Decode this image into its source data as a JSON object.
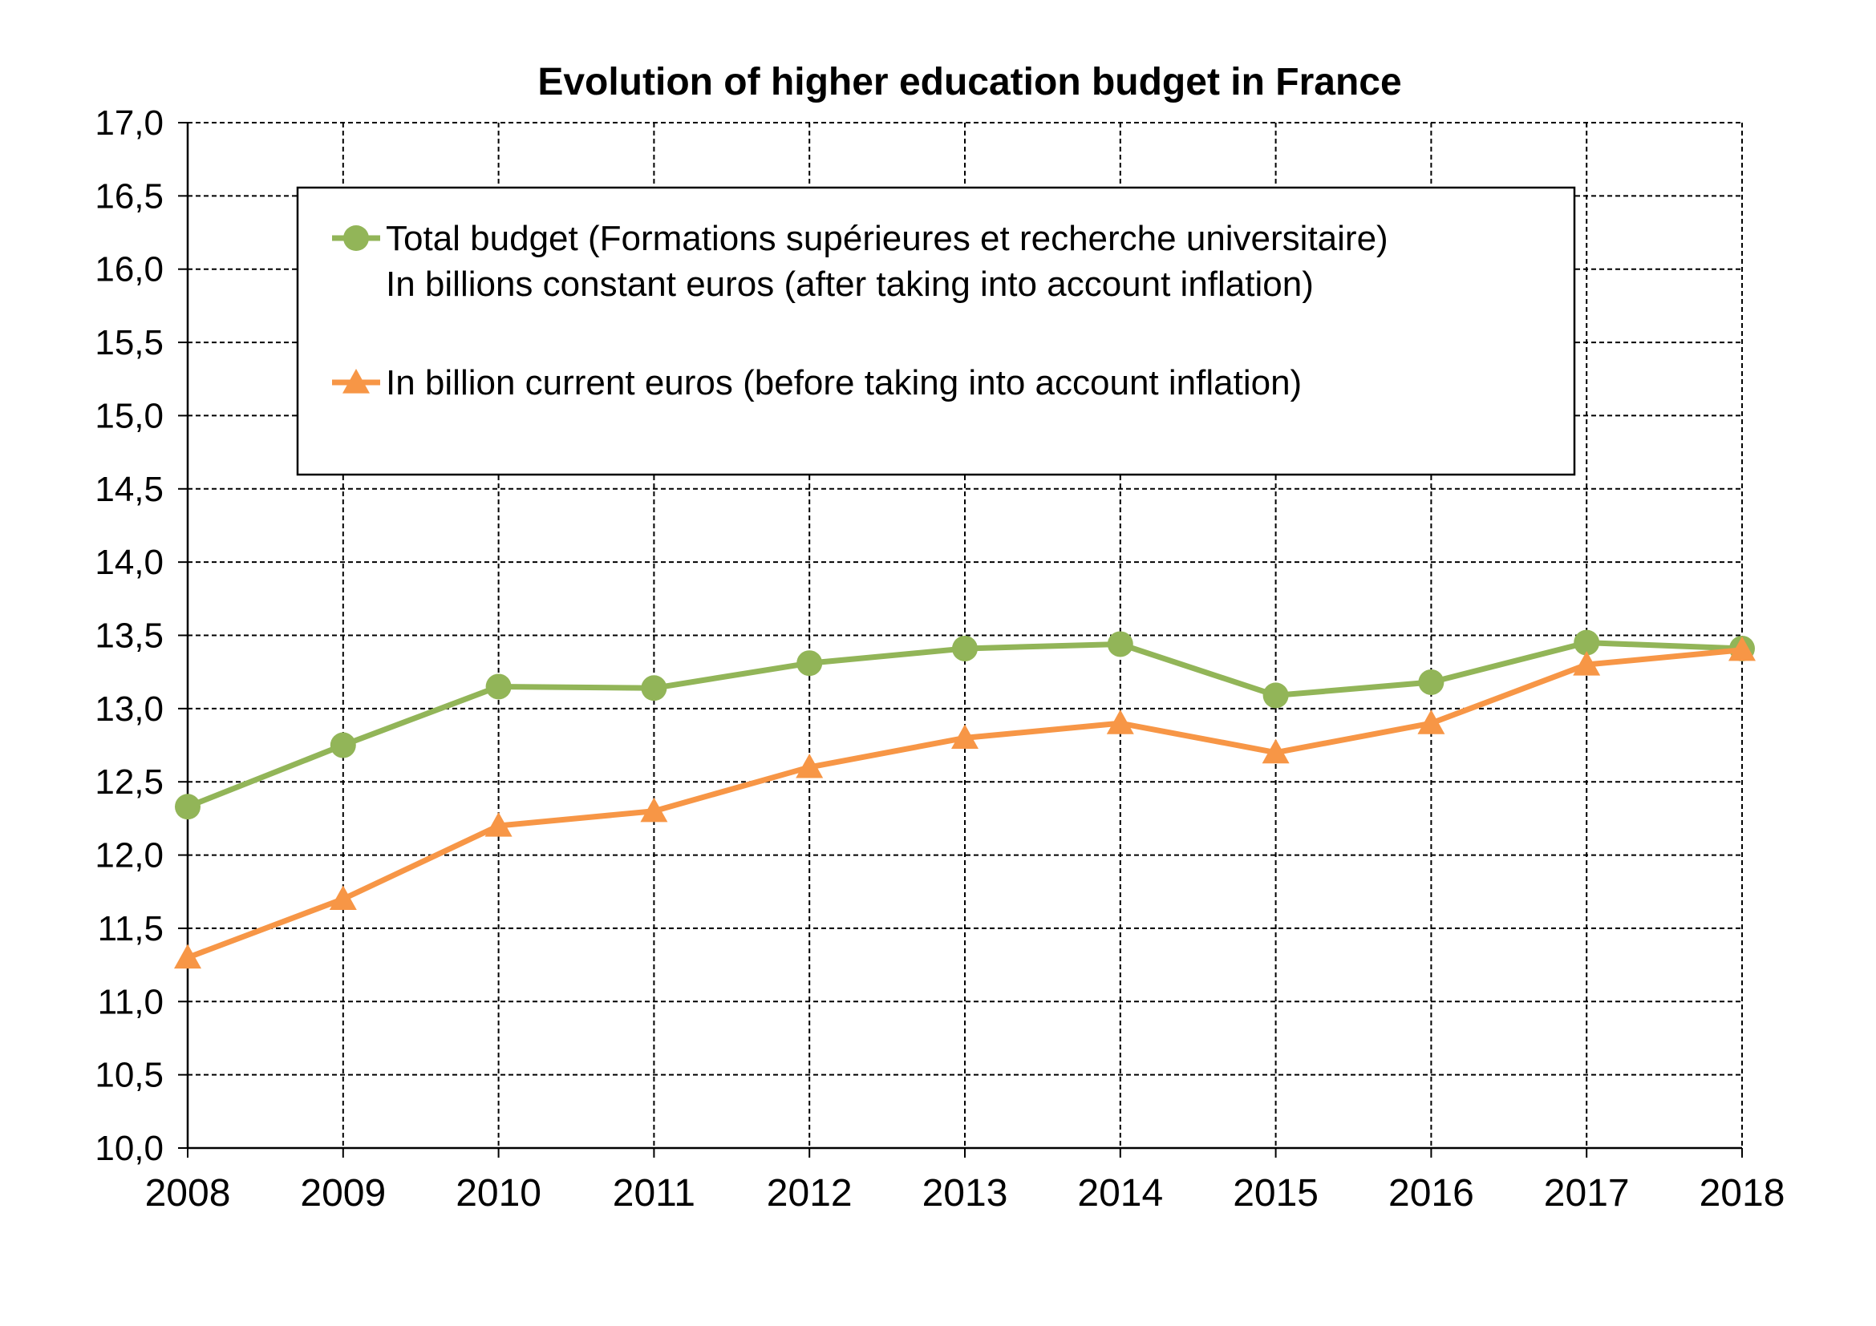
{
  "chart_data": {
    "type": "line",
    "title": "Evolution of higher education budget in France",
    "xlabel": "",
    "ylabel": "",
    "x": [
      "2008",
      "2009",
      "2010",
      "2011",
      "2012",
      "2013",
      "2014",
      "2015",
      "2016",
      "2017",
      "2018"
    ],
    "ylim": [
      10.0,
      17.0
    ],
    "yticks": [
      "10,0",
      "10,5",
      "11,0",
      "11,5",
      "12,0",
      "12,5",
      "13,0",
      "13,5",
      "14,0",
      "14,5",
      "15,0",
      "15,5",
      "16,0",
      "16,5",
      "17,0"
    ],
    "grid": true,
    "legend_position": "top",
    "series": [
      {
        "name": "Total budget (Formations supérieures et recherche universitaire)",
        "name_line2": "In billions constant euros (after taking into account inflation)",
        "marker": "circle",
        "color": "#92B558",
        "values": [
          12.33,
          12.75,
          13.15,
          13.14,
          13.31,
          13.41,
          13.44,
          13.09,
          13.18,
          13.45,
          13.41
        ]
      },
      {
        "name": "In billion current euros (before taking into account inflation)",
        "marker": "triangle",
        "color": "#F79646",
        "values": [
          11.3,
          11.7,
          12.2,
          12.3,
          12.6,
          12.8,
          12.9,
          12.7,
          12.9,
          13.3,
          13.4
        ]
      }
    ]
  }
}
